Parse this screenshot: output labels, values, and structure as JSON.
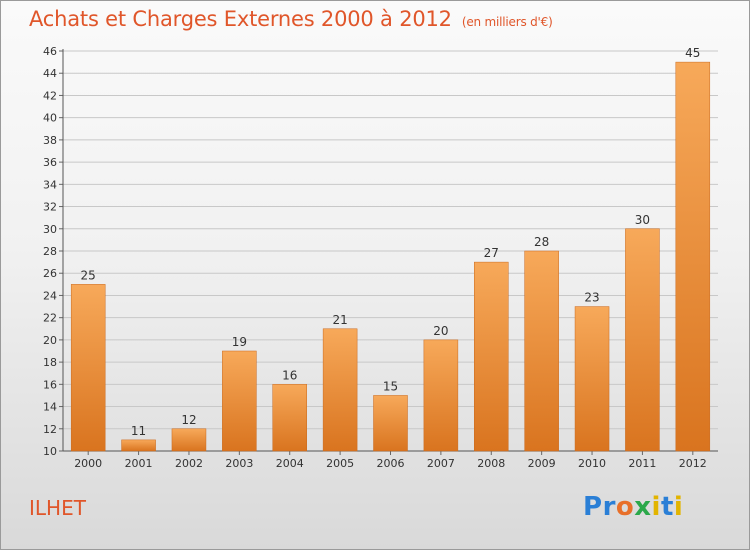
{
  "title": "Achats et Charges Externes 2000 à 2012",
  "title_unit": "(en milliers d'€)",
  "commune": "ILHET",
  "logo": {
    "text": "Proxiti",
    "letter_colors": [
      "#2a7fd6",
      "#2a7fd6",
      "#e8702a",
      "#2ba84a",
      "#e2b400",
      "#2a7fd6",
      "#e2b400"
    ]
  },
  "colors": {
    "title": "#e0562a",
    "bar_light": "#f7a95a",
    "bar_dark": "#d9741f",
    "grid": "#c8c8c8"
  },
  "chart_data": {
    "type": "bar",
    "title": "Achats et Charges Externes 2000 à 2012",
    "categories": [
      "2000",
      "2001",
      "2002",
      "2003",
      "2004",
      "2005",
      "2006",
      "2007",
      "2008",
      "2009",
      "2010",
      "2011",
      "2012"
    ],
    "values": [
      25,
      11,
      12,
      19,
      16,
      21,
      15,
      20,
      27,
      28,
      23,
      30,
      45
    ],
    "ylim": [
      10,
      46
    ],
    "yticks": [
      10,
      12,
      14,
      16,
      18,
      20,
      22,
      24,
      26,
      28,
      30,
      32,
      34,
      36,
      38,
      40,
      42,
      44,
      46
    ],
    "grid": true,
    "data_labels": true
  }
}
